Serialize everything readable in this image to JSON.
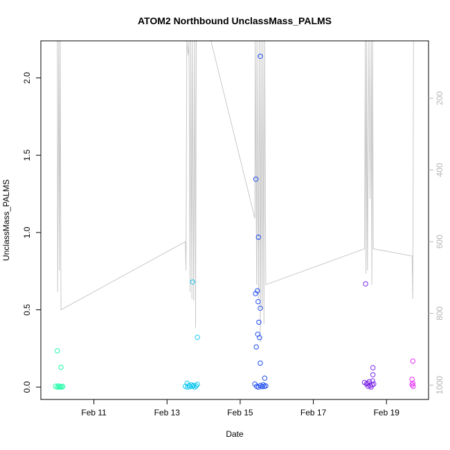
{
  "chart_data": {
    "type": "scatter",
    "title": "ATOM2 Northbound UnclassMass_PALMS",
    "xlabel": "Date",
    "ylabel": "UnclassMass_PALMS",
    "x_ticks": [
      "Feb 11",
      "Feb 13",
      "Feb 15",
      "Feb 17",
      "Feb 19"
    ],
    "x_tick_days": [
      11,
      13,
      15,
      17,
      19
    ],
    "xlim_days": [
      9.55,
      20.15
    ],
    "y_ticks": [
      0.0,
      0.5,
      1.0,
      1.5,
      2.0
    ],
    "y_tick_labels": [
      "0.0",
      "0.5",
      "1.0",
      "1.5",
      "2.0"
    ],
    "ylim": [
      -0.08,
      2.24
    ],
    "y2_ticks": [
      200,
      400,
      600,
      800,
      1000
    ],
    "y2_tick_labels": [
      "200",
      "400",
      "600",
      "800",
      "1000"
    ],
    "y2lim": [
      1040,
      40
    ],
    "grid": false,
    "points": [
      {
        "day": 10.0,
        "value": 0.235,
        "color": "#1efca6"
      },
      {
        "day": 10.1,
        "value": 0.128,
        "color": "#1efca6"
      },
      {
        "day": 9.95,
        "value": 0.005,
        "color": "#1efca6"
      },
      {
        "day": 10.0,
        "value": 0.0,
        "color": "#1efca6"
      },
      {
        "day": 10.03,
        "value": 0.008,
        "color": "#1efca6"
      },
      {
        "day": 10.06,
        "value": 0.0,
        "color": "#1efca6"
      },
      {
        "day": 10.09,
        "value": 0.003,
        "color": "#1efca6"
      },
      {
        "day": 10.12,
        "value": 0.0,
        "color": "#1efca6"
      },
      {
        "day": 10.15,
        "value": 0.004,
        "color": "#1efca6"
      },
      {
        "day": 13.7,
        "value": 0.68,
        "color": "#13c8f0"
      },
      {
        "day": 13.83,
        "value": 0.322,
        "color": "#13c8f0"
      },
      {
        "day": 13.55,
        "value": 0.025,
        "color": "#13c8f0"
      },
      {
        "day": 13.5,
        "value": 0.005,
        "color": "#13c8f0"
      },
      {
        "day": 13.56,
        "value": 0.0,
        "color": "#13c8f0"
      },
      {
        "day": 13.6,
        "value": 0.01,
        "color": "#13c8f0"
      },
      {
        "day": 13.63,
        "value": 0.003,
        "color": "#13c8f0"
      },
      {
        "day": 13.66,
        "value": 0.015,
        "color": "#13c8f0"
      },
      {
        "day": 13.7,
        "value": 0.005,
        "color": "#13c8f0"
      },
      {
        "day": 13.73,
        "value": 0.012,
        "color": "#13c8f0"
      },
      {
        "day": 13.76,
        "value": 0.0,
        "color": "#13c8f0"
      },
      {
        "day": 13.8,
        "value": 0.008,
        "color": "#13c8f0"
      },
      {
        "day": 13.83,
        "value": 0.018,
        "color": "#13c8f0"
      },
      {
        "day": 15.55,
        "value": 2.14,
        "color": "#1c4cf0"
      },
      {
        "day": 15.43,
        "value": 1.345,
        "color": "#1c4cf0"
      },
      {
        "day": 15.5,
        "value": 0.97,
        "color": "#1c4cf0"
      },
      {
        "day": 15.47,
        "value": 0.623,
        "color": "#1c4cf0"
      },
      {
        "day": 15.42,
        "value": 0.605,
        "color": "#1c4cf0"
      },
      {
        "day": 15.49,
        "value": 0.553,
        "color": "#1c4cf0"
      },
      {
        "day": 15.55,
        "value": 0.51,
        "color": "#1c4cf0"
      },
      {
        "day": 15.51,
        "value": 0.42,
        "color": "#1c4cf0"
      },
      {
        "day": 15.48,
        "value": 0.342,
        "color": "#1c4cf0"
      },
      {
        "day": 15.53,
        "value": 0.32,
        "color": "#1c4cf0"
      },
      {
        "day": 15.44,
        "value": 0.26,
        "color": "#1c4cf0"
      },
      {
        "day": 15.55,
        "value": 0.155,
        "color": "#1c4cf0"
      },
      {
        "day": 15.67,
        "value": 0.058,
        "color": "#1c4cf0"
      },
      {
        "day": 15.4,
        "value": 0.02,
        "color": "#1c4cf0"
      },
      {
        "day": 15.45,
        "value": 0.005,
        "color": "#1c4cf0"
      },
      {
        "day": 15.5,
        "value": 0.0,
        "color": "#1c4cf0"
      },
      {
        "day": 15.55,
        "value": 0.01,
        "color": "#1c4cf0"
      },
      {
        "day": 15.6,
        "value": 0.003,
        "color": "#1c4cf0"
      },
      {
        "day": 15.63,
        "value": 0.015,
        "color": "#1c4cf0"
      },
      {
        "day": 15.66,
        "value": 0.005,
        "color": "#1c4cf0"
      },
      {
        "day": 15.7,
        "value": 0.008,
        "color": "#1c4cf0"
      },
      {
        "day": 18.43,
        "value": 0.668,
        "color": "#7a24e8"
      },
      {
        "day": 18.63,
        "value": 0.125,
        "color": "#7a24e8"
      },
      {
        "day": 18.63,
        "value": 0.08,
        "color": "#7a24e8"
      },
      {
        "day": 18.62,
        "value": 0.04,
        "color": "#7a24e8"
      },
      {
        "day": 18.4,
        "value": 0.03,
        "color": "#7a24e8"
      },
      {
        "day": 18.45,
        "value": 0.02,
        "color": "#7a24e8"
      },
      {
        "day": 18.48,
        "value": 0.025,
        "color": "#7a24e8"
      },
      {
        "day": 18.5,
        "value": 0.005,
        "color": "#7a24e8"
      },
      {
        "day": 18.53,
        "value": 0.035,
        "color": "#7a24e8"
      },
      {
        "day": 18.55,
        "value": 0.01,
        "color": "#7a24e8"
      },
      {
        "day": 18.58,
        "value": 0.0,
        "color": "#7a24e8"
      },
      {
        "day": 18.61,
        "value": 0.015,
        "color": "#7a24e8"
      },
      {
        "day": 18.65,
        "value": 0.02,
        "color": "#7a24e8"
      },
      {
        "day": 19.72,
        "value": 0.168,
        "color": "#e22cf4"
      },
      {
        "day": 19.7,
        "value": 0.05,
        "color": "#e22cf4"
      },
      {
        "day": 19.72,
        "value": 0.025,
        "color": "#e22cf4"
      },
      {
        "day": 19.7,
        "value": 0.015,
        "color": "#e22cf4"
      },
      {
        "day": 19.73,
        "value": 0.005,
        "color": "#e22cf4"
      }
    ],
    "line_secondary": {
      "color": "#c8c8c8",
      "points": [
        [
          10.0,
          40
        ],
        [
          10.01,
          740
        ],
        [
          10.04,
          40
        ],
        [
          10.06,
          680
        ],
        [
          10.08,
          40
        ],
        [
          10.1,
          790
        ],
        [
          13.5,
          600
        ],
        [
          13.52,
          680
        ],
        [
          13.54,
          40
        ],
        [
          13.58,
          80
        ],
        [
          13.6,
          40
        ],
        [
          13.63,
          740
        ],
        [
          13.65,
          40
        ],
        [
          13.68,
          760
        ],
        [
          13.7,
          40
        ],
        [
          13.73,
          765
        ],
        [
          13.76,
          40
        ],
        [
          13.78,
          840
        ],
        [
          13.8,
          40
        ],
        [
          14.2,
          40
        ],
        [
          15.4,
          535
        ],
        [
          15.41,
          40
        ],
        [
          15.45,
          720
        ],
        [
          15.46,
          40
        ],
        [
          15.5,
          760
        ],
        [
          15.52,
          40
        ],
        [
          15.55,
          880
        ],
        [
          15.57,
          40
        ],
        [
          15.6,
          790
        ],
        [
          15.62,
          40
        ],
        [
          15.65,
          830
        ],
        [
          15.67,
          40
        ],
        [
          15.7,
          720
        ],
        [
          18.4,
          620
        ],
        [
          18.42,
          40
        ],
        [
          18.44,
          690
        ],
        [
          18.46,
          40
        ],
        [
          18.48,
          680
        ],
        [
          18.52,
          40
        ],
        [
          18.55,
          480
        ],
        [
          18.58,
          40
        ],
        [
          18.6,
          720
        ],
        [
          18.62,
          40
        ],
        [
          18.64,
          620
        ],
        [
          19.7,
          640
        ],
        [
          19.72,
          760
        ],
        [
          19.74,
          40
        ]
      ]
    }
  }
}
